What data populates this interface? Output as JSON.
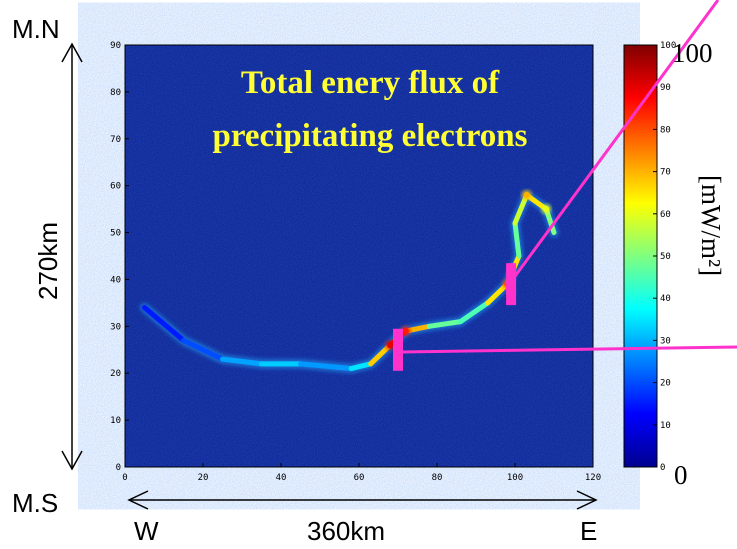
{
  "labels": {
    "top_left": "M.N",
    "bottom_left": "M.S",
    "left_vertical": "270km",
    "bottom_center": "360km",
    "west": "W",
    "east": "E",
    "colorbar_unit": "[mW/m²]",
    "colorbar_max_big": "100",
    "colorbar_min_big": "0"
  },
  "chart_data": {
    "type": "heatmap",
    "title_lines": [
      "Total enery flux of",
      "precipitating electrons"
    ],
    "x_ticks": [
      "0",
      "20",
      "40",
      "60",
      "80",
      "100",
      "120"
    ],
    "y_ticks": [
      "0",
      "10",
      "20",
      "30",
      "40",
      "50",
      "60",
      "70",
      "80",
      "90"
    ],
    "colorbar_ticks": [
      "0",
      "10",
      "20",
      "30",
      "40",
      "50",
      "60",
      "70",
      "80",
      "90",
      "100"
    ],
    "xlim": [
      0,
      120
    ],
    "ylim": [
      0,
      90
    ],
    "clim": [
      0,
      100
    ],
    "colormap": "jet",
    "background_color": "#0d1f8f",
    "arc_path": [
      {
        "x": 5,
        "y": 34,
        "v": 12
      },
      {
        "x": 15,
        "y": 27,
        "v": 18
      },
      {
        "x": 25,
        "y": 23,
        "v": 22
      },
      {
        "x": 35,
        "y": 22,
        "v": 35
      },
      {
        "x": 45,
        "y": 22,
        "v": 30
      },
      {
        "x": 58,
        "y": 21,
        "v": 25
      },
      {
        "x": 63,
        "y": 22,
        "v": 45
      },
      {
        "x": 68,
        "y": 26,
        "v": 90
      },
      {
        "x": 72,
        "y": 29,
        "v": 85
      },
      {
        "x": 78,
        "y": 30,
        "v": 55
      },
      {
        "x": 86,
        "y": 31,
        "v": 40
      },
      {
        "x": 93,
        "y": 35,
        "v": 50
      },
      {
        "x": 98,
        "y": 39,
        "v": 80
      },
      {
        "x": 101,
        "y": 45,
        "v": 50
      },
      {
        "x": 100,
        "y": 52,
        "v": 45
      },
      {
        "x": 103,
        "y": 58,
        "v": 70
      },
      {
        "x": 108,
        "y": 55,
        "v": 60
      },
      {
        "x": 110,
        "y": 50,
        "v": 40
      }
    ],
    "markers": [
      {
        "x": 70,
        "y": 25
      },
      {
        "x": 99,
        "y": 39
      }
    ],
    "marker_color": "#ff33cc"
  }
}
